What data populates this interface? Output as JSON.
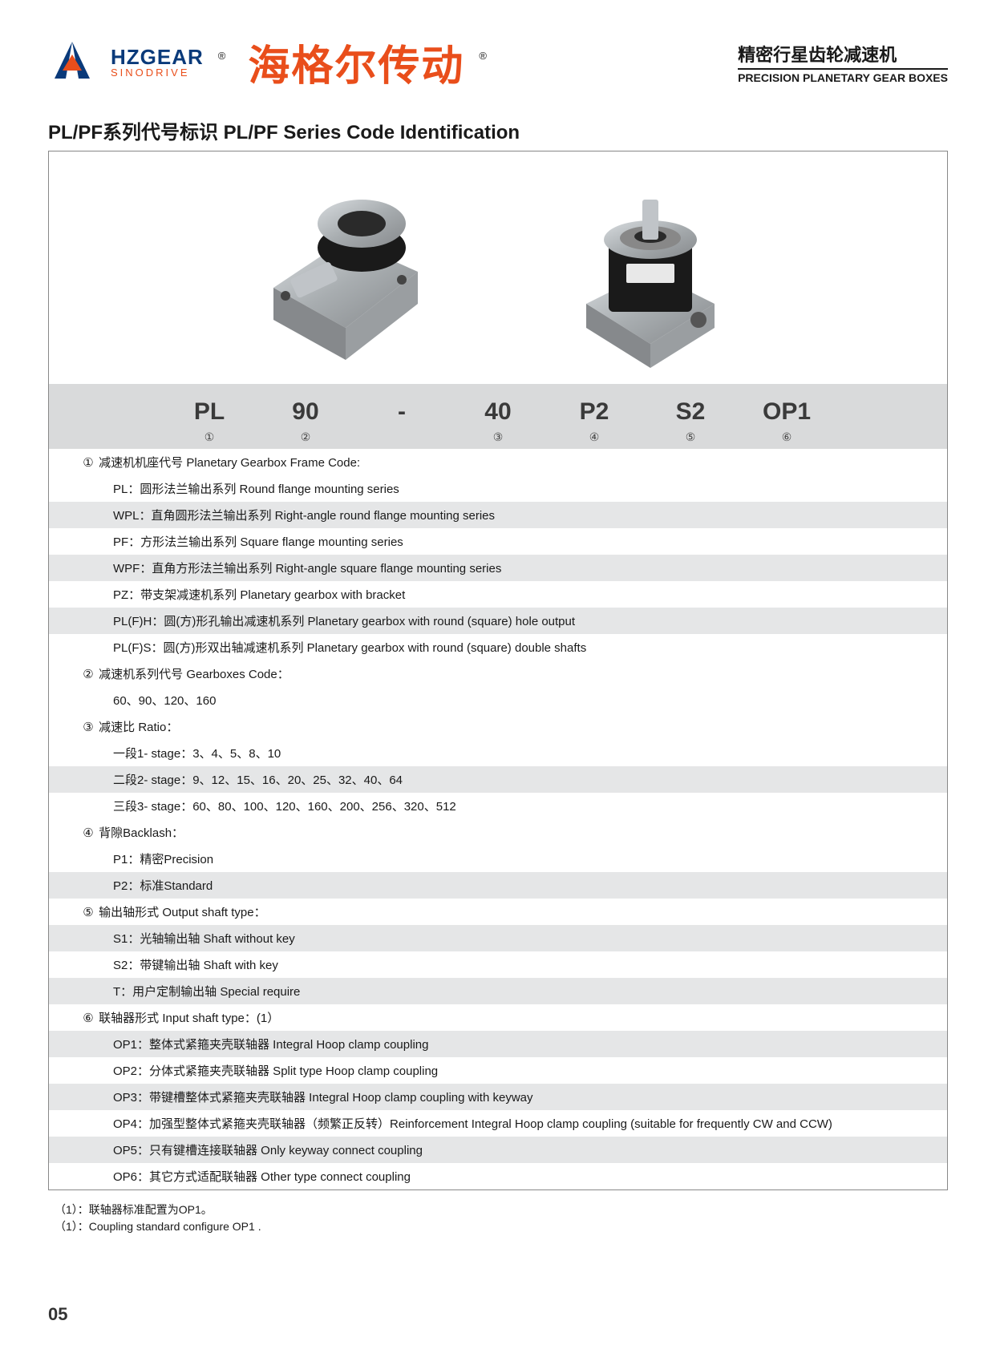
{
  "header": {
    "brand_en_top": "HZGEAR",
    "brand_en_bot": "SINODRIVE",
    "brand_cn": "海格尔传动",
    "reg_mark": "®",
    "right_cn": "精密行星齿轮减速机",
    "right_en": "PRECISION PLANETARY GEAR BOXES",
    "logo_colors": {
      "blue": "#0a3a7a",
      "orange": "#e94e1b"
    }
  },
  "title": "PL/PF系列代号标识 PL/PF Series Code Identification",
  "code_row": {
    "bg": "#d9dadb",
    "cells": [
      "PL",
      "90",
      "-",
      "40",
      "P2",
      "S2",
      "OP1"
    ],
    "labels": [
      "①",
      "②",
      "",
      "③",
      "④",
      "⑤",
      "⑥"
    ]
  },
  "table": {
    "zebra_odd": "#e5e6e7",
    "zebra_even": "#ffffff",
    "font_size": 15,
    "rows": [
      {
        "kind": "h",
        "num": "①",
        "text": "减速机机座代号 Planetary Gearbox Frame Code:"
      },
      {
        "kind": "s",
        "text": "PL：圆形法兰输出系列 Round flange mounting series"
      },
      {
        "kind": "s",
        "text": "WPL：直角圆形法兰输出系列 Right-angle round flange mounting series"
      },
      {
        "kind": "s",
        "text": "PF：方形法兰输出系列 Square flange mounting series"
      },
      {
        "kind": "s",
        "text": "WPF：直角方形法兰输出系列 Right-angle square flange mounting series"
      },
      {
        "kind": "s",
        "text": "PZ：带支架减速机系列 Planetary gearbox with bracket"
      },
      {
        "kind": "s",
        "text": "PL(F)H：圆(方)形孔输出减速机系列 Planetary gearbox with round (square) hole output"
      },
      {
        "kind": "s",
        "text": "PL(F)S：圆(方)形双出轴减速机系列 Planetary gearbox with round (square) double shafts"
      },
      {
        "kind": "h",
        "num": "②",
        "text": "减速机系列代号 Gearboxes Code："
      },
      {
        "kind": "s",
        "text": "60、90、120、160"
      },
      {
        "kind": "h",
        "num": "③",
        "text": "减速比 Ratio："
      },
      {
        "kind": "s",
        "text": "一段1- stage：3、4、5、8、10"
      },
      {
        "kind": "s",
        "text": "二段2- stage：9、12、15、16、20、25、32、40、64"
      },
      {
        "kind": "s",
        "text": "三段3- stage：60、80、100、120、160、200、256、320、512"
      },
      {
        "kind": "h",
        "num": "④",
        "text": "背隙Backlash："
      },
      {
        "kind": "s",
        "text": "P1：精密Precision"
      },
      {
        "kind": "s",
        "text": "P2：标准Standard"
      },
      {
        "kind": "h",
        "num": "⑤",
        "text": "输出轴形式 Output shaft type："
      },
      {
        "kind": "s",
        "text": "S1：光轴输出轴 Shaft without key"
      },
      {
        "kind": "s",
        "text": "S2：带键输出轴 Shaft with key"
      },
      {
        "kind": "s",
        "text": "T：用户定制输出轴 Special require"
      },
      {
        "kind": "h",
        "num": "⑥",
        "text": "联轴器形式 Input shaft type：(1）"
      },
      {
        "kind": "s",
        "text": "OP1：整体式紧箍夹壳联轴器 Integral Hoop clamp coupling"
      },
      {
        "kind": "s",
        "text": "OP2：分体式紧箍夹壳联轴器 Split type Hoop clamp coupling"
      },
      {
        "kind": "s",
        "text": "OP3：带键槽整体式紧箍夹壳联轴器 Integral Hoop clamp coupling with keyway"
      },
      {
        "kind": "s",
        "text": "OP4：加强型整体式紧箍夹壳联轴器（频繁正反转）Reinforcement Integral Hoop clamp coupling (suitable for frequently CW and CCW)"
      },
      {
        "kind": "s",
        "text": "OP5：只有键槽连接联轴器 Only keyway connect coupling"
      },
      {
        "kind": "s",
        "text": "OP6：其它方式适配联轴器 Other type connect coupling"
      }
    ]
  },
  "footnotes": {
    "line1": "（1）：联轴器标准配置为OP1。",
    "line2": "（1）：Coupling standard configure OP1 ."
  },
  "page_number": "05",
  "gearbox_colors": {
    "metal": "#b8bcc0",
    "metal_dark": "#86898c",
    "body": "#1a1a1a",
    "shaft": "#c0c4c8"
  }
}
